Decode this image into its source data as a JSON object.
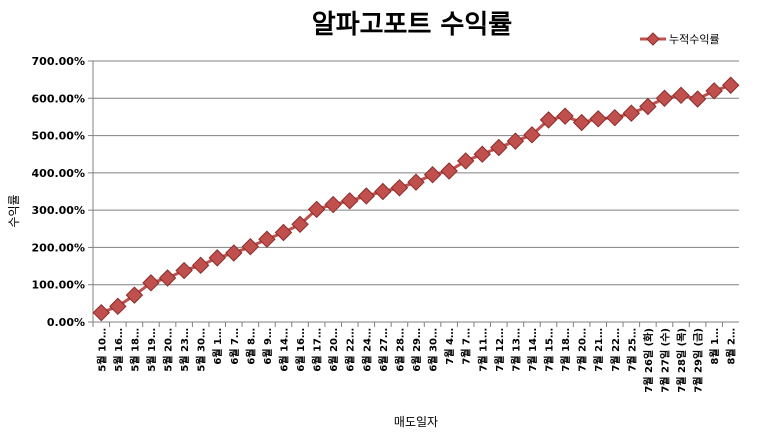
{
  "chart_data": {
    "type": "line",
    "title": "알파고포트 수익률",
    "xlabel": "매도일자",
    "ylabel": "수익률",
    "ylim": [
      0,
      7
    ],
    "yticks": [
      "0.00%",
      "100.00%",
      "200.00%",
      "300.00%",
      "400.00%",
      "500.00%",
      "600.00%",
      "700.00%"
    ],
    "grid": true,
    "legend_position": "top-right",
    "colors": {
      "line": "#c0504d",
      "marker": "#c0504d",
      "marker_edge": "#8b2b2a",
      "grid": "#808080"
    },
    "categories": [
      "5월 10…",
      "5월 16…",
      "5월 18…",
      "5월 19…",
      "5월 20…",
      "5월 23…",
      "5월 30…",
      "6월 1…",
      "6월 7…",
      "6월 8…",
      "6월 9…",
      "6월 14…",
      "6월 16…",
      "6월 17…",
      "6월 20…",
      "6월 22…",
      "6월 24…",
      "6월 27…",
      "6월 28…",
      "6월 29…",
      "6월 30…",
      "7월 4…",
      "7월 7…",
      "7월 11…",
      "7월 12…",
      "7월 13…",
      "7월 14…",
      "7월 15…",
      "7월 18…",
      "7월 20…",
      "7월 21…",
      "7월 22…",
      "7월 25…",
      "7월 26일 (화)",
      "7월 27일 (수)",
      "7월 28일 (목)",
      "7월 29일 (금)",
      "8월 1…",
      "8월 2…"
    ],
    "series": [
      {
        "name": "누적수익률",
        "values": [
          0.25,
          0.42,
          0.72,
          1.05,
          1.18,
          1.38,
          1.52,
          1.72,
          1.85,
          2.02,
          2.22,
          2.4,
          2.62,
          3.02,
          3.15,
          3.25,
          3.38,
          3.5,
          3.6,
          3.75,
          3.95,
          4.05,
          4.32,
          4.5,
          4.68,
          4.85,
          5.02,
          5.42,
          5.52,
          5.35,
          5.45,
          5.48,
          5.6,
          5.78,
          6.0,
          6.08,
          5.98,
          6.2,
          6.35
        ]
      }
    ]
  }
}
